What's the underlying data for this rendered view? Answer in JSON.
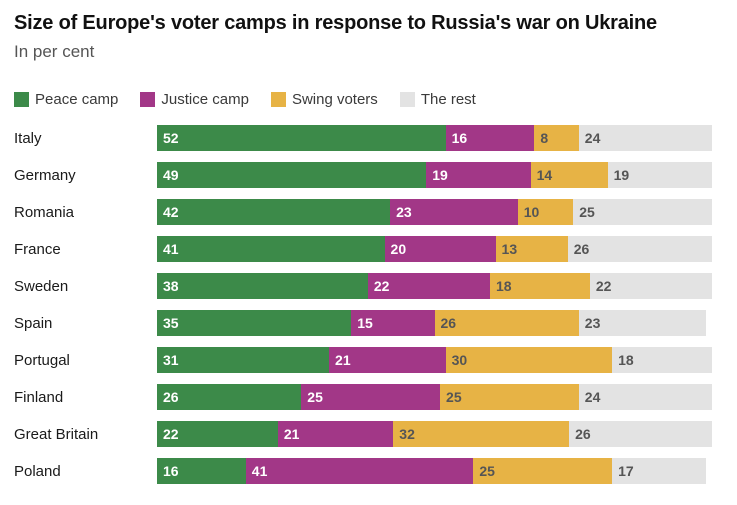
{
  "chart_data": {
    "type": "bar",
    "orientation": "horizontal",
    "stacked": true,
    "title": "Size of Europe's voter camps in response to Russia's war on Ukraine",
    "subtitle": "In per cent",
    "legend_position": "top",
    "xlim": [
      0,
      100
    ],
    "grid": false,
    "categories": [
      "Italy",
      "Germany",
      "Romania",
      "France",
      "Sweden",
      "Spain",
      "Portugal",
      "Finland",
      "Great Britain",
      "Poland"
    ],
    "series": [
      {
        "name": "Peace camp",
        "color": "#3c8a49",
        "label_color": "#ffffff",
        "values": [
          52,
          49,
          42,
          41,
          38,
          35,
          31,
          26,
          22,
          16
        ]
      },
      {
        "name": "Justice camp",
        "color": "#a23787",
        "label_color": "#ffffff",
        "values": [
          16,
          19,
          23,
          20,
          22,
          15,
          21,
          25,
          21,
          41
        ]
      },
      {
        "name": "Swing voters",
        "color": "#e7b345",
        "label_color": "#555555",
        "values": [
          8,
          14,
          10,
          13,
          18,
          26,
          30,
          25,
          32,
          25
        ]
      },
      {
        "name": "The rest",
        "color": "#e3e3e3",
        "label_color": "#555555",
        "values": [
          24,
          19,
          25,
          26,
          22,
          23,
          18,
          24,
          26,
          17
        ]
      }
    ]
  }
}
